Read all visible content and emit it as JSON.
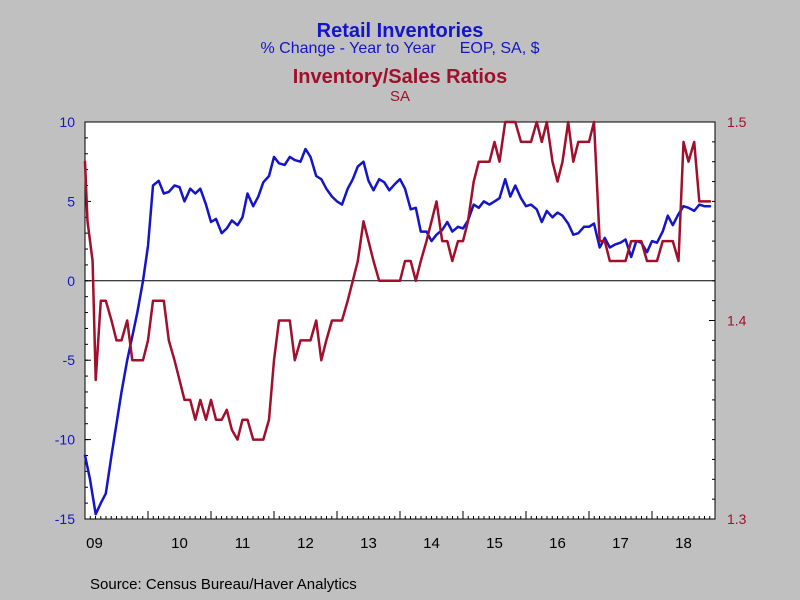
{
  "titles": {
    "line1": "Retail Inventories",
    "line2a": "% Change - Year to Year",
    "line2b": "EOP, SA, $",
    "line3": "Inventory/Sales Ratios",
    "line4": "SA"
  },
  "source": "Source:  Census Bureau/Haver Analytics",
  "colors": {
    "background": "#c0c0c0",
    "plot_background": "#ffffff",
    "inventories": "#1414c8",
    "ratio": "#a0102c",
    "left_axis_text": "#1414c8",
    "right_axis_text": "#a0102c"
  },
  "chart_data": {
    "type": "line",
    "x_range": [
      2009.0,
      2019.0
    ],
    "x_tick_labels": [
      "09",
      "10",
      "11",
      "12",
      "13",
      "14",
      "15",
      "16",
      "17",
      "18"
    ],
    "left_axis": {
      "ylim": [
        -15,
        10
      ],
      "ticks": [
        10,
        5,
        0,
        -5,
        -10,
        -15
      ]
    },
    "right_axis": {
      "ylim": [
        1.3,
        1.5
      ],
      "ticks": [
        1.5,
        1.4,
        1.3
      ]
    },
    "zero_line": 0,
    "grid": false,
    "series": [
      {
        "name": "Retail Inventories",
        "axis": "left",
        "color": "#1414c8",
        "points": [
          [
            2009.0,
            -11.0
          ],
          [
            2009.08,
            -12.5
          ],
          [
            2009.17,
            -14.7
          ],
          [
            2009.25,
            -14.0
          ],
          [
            2009.33,
            -13.4
          ],
          [
            2009.42,
            -11.0
          ],
          [
            2009.5,
            -9.0
          ],
          [
            2009.58,
            -7.0
          ],
          [
            2009.67,
            -5.0
          ],
          [
            2009.75,
            -3.5
          ],
          [
            2009.83,
            -2.0
          ],
          [
            2009.92,
            0.0
          ],
          [
            2010.0,
            2.2
          ],
          [
            2010.08,
            6.0
          ],
          [
            2010.17,
            6.3
          ],
          [
            2010.25,
            5.5
          ],
          [
            2010.33,
            5.6
          ],
          [
            2010.42,
            6.0
          ],
          [
            2010.5,
            5.9
          ],
          [
            2010.58,
            5.0
          ],
          [
            2010.67,
            5.8
          ],
          [
            2010.75,
            5.5
          ],
          [
            2010.83,
            5.8
          ],
          [
            2010.92,
            4.8
          ],
          [
            2011.0,
            3.7
          ],
          [
            2011.08,
            3.9
          ],
          [
            2011.17,
            3.0
          ],
          [
            2011.25,
            3.3
          ],
          [
            2011.33,
            3.8
          ],
          [
            2011.42,
            3.5
          ],
          [
            2011.5,
            4.0
          ],
          [
            2011.58,
            5.5
          ],
          [
            2011.67,
            4.7
          ],
          [
            2011.75,
            5.3
          ],
          [
            2011.83,
            6.2
          ],
          [
            2011.92,
            6.6
          ],
          [
            2012.0,
            7.8
          ],
          [
            2012.08,
            7.4
          ],
          [
            2012.17,
            7.3
          ],
          [
            2012.25,
            7.8
          ],
          [
            2012.33,
            7.6
          ],
          [
            2012.42,
            7.5
          ],
          [
            2012.5,
            8.3
          ],
          [
            2012.58,
            7.8
          ],
          [
            2012.67,
            6.6
          ],
          [
            2012.75,
            6.4
          ],
          [
            2012.83,
            5.8
          ],
          [
            2012.92,
            5.3
          ],
          [
            2013.0,
            5.0
          ],
          [
            2013.08,
            4.8
          ],
          [
            2013.17,
            5.8
          ],
          [
            2013.25,
            6.4
          ],
          [
            2013.33,
            7.2
          ],
          [
            2013.42,
            7.5
          ],
          [
            2013.5,
            6.3
          ],
          [
            2013.58,
            5.7
          ],
          [
            2013.67,
            6.4
          ],
          [
            2013.75,
            6.2
          ],
          [
            2013.83,
            5.7
          ],
          [
            2013.92,
            6.1
          ],
          [
            2014.0,
            6.4
          ],
          [
            2014.08,
            5.8
          ],
          [
            2014.17,
            4.5
          ],
          [
            2014.25,
            4.6
          ],
          [
            2014.33,
            3.1
          ],
          [
            2014.42,
            3.1
          ],
          [
            2014.5,
            2.5
          ],
          [
            2014.58,
            2.9
          ],
          [
            2014.67,
            3.2
          ],
          [
            2014.75,
            3.7
          ],
          [
            2014.83,
            3.1
          ],
          [
            2014.92,
            3.4
          ],
          [
            2015.0,
            3.3
          ],
          [
            2015.08,
            3.8
          ],
          [
            2015.17,
            4.8
          ],
          [
            2015.25,
            4.6
          ],
          [
            2015.33,
            5.0
          ],
          [
            2015.42,
            4.8
          ],
          [
            2015.5,
            5.0
          ],
          [
            2015.58,
            5.2
          ],
          [
            2015.67,
            6.4
          ],
          [
            2015.75,
            5.3
          ],
          [
            2015.83,
            6.0
          ],
          [
            2015.92,
            5.2
          ],
          [
            2016.0,
            4.7
          ],
          [
            2016.08,
            4.8
          ],
          [
            2016.17,
            4.5
          ],
          [
            2016.25,
            3.7
          ],
          [
            2016.33,
            4.4
          ],
          [
            2016.42,
            4.0
          ],
          [
            2016.5,
            4.3
          ],
          [
            2016.58,
            4.1
          ],
          [
            2016.67,
            3.6
          ],
          [
            2016.75,
            2.9
          ],
          [
            2016.83,
            3.0
          ],
          [
            2016.92,
            3.4
          ],
          [
            2017.0,
            3.4
          ],
          [
            2017.08,
            3.6
          ],
          [
            2017.17,
            2.1
          ],
          [
            2017.25,
            2.7
          ],
          [
            2017.33,
            2.1
          ],
          [
            2017.42,
            2.3
          ],
          [
            2017.5,
            2.4
          ],
          [
            2017.58,
            2.6
          ],
          [
            2017.67,
            1.5
          ],
          [
            2017.75,
            2.5
          ],
          [
            2017.83,
            2.4
          ],
          [
            2017.92,
            1.8
          ],
          [
            2018.0,
            2.5
          ],
          [
            2018.08,
            2.4
          ],
          [
            2018.17,
            3.1
          ],
          [
            2018.25,
            4.1
          ],
          [
            2018.33,
            3.5
          ],
          [
            2018.42,
            4.2
          ],
          [
            2018.5,
            4.7
          ],
          [
            2018.58,
            4.6
          ],
          [
            2018.67,
            4.4
          ],
          [
            2018.75,
            4.8
          ],
          [
            2018.83,
            4.7
          ],
          [
            2018.92,
            4.7
          ]
        ]
      },
      {
        "name": "Inventory/Sales Ratios",
        "axis": "right",
        "color": "#a0102c",
        "points": [
          [
            2009.0,
            1.48
          ],
          [
            2009.04,
            1.45
          ],
          [
            2009.12,
            1.43
          ],
          [
            2009.17,
            1.37
          ],
          [
            2009.25,
            1.41
          ],
          [
            2009.33,
            1.41
          ],
          [
            2009.42,
            1.4
          ],
          [
            2009.5,
            1.39
          ],
          [
            2009.58,
            1.39
          ],
          [
            2009.67,
            1.4
          ],
          [
            2009.75,
            1.38
          ],
          [
            2009.83,
            1.38
          ],
          [
            2009.92,
            1.38
          ],
          [
            2010.0,
            1.39
          ],
          [
            2010.08,
            1.41
          ],
          [
            2010.17,
            1.41
          ],
          [
            2010.25,
            1.41
          ],
          [
            2010.33,
            1.39
          ],
          [
            2010.42,
            1.38
          ],
          [
            2010.5,
            1.37
          ],
          [
            2010.58,
            1.36
          ],
          [
            2010.67,
            1.36
          ],
          [
            2010.75,
            1.35
          ],
          [
            2010.83,
            1.36
          ],
          [
            2010.92,
            1.35
          ],
          [
            2011.0,
            1.36
          ],
          [
            2011.08,
            1.35
          ],
          [
            2011.17,
            1.35
          ],
          [
            2011.25,
            1.355
          ],
          [
            2011.33,
            1.345
          ],
          [
            2011.42,
            1.34
          ],
          [
            2011.5,
            1.35
          ],
          [
            2011.58,
            1.35
          ],
          [
            2011.67,
            1.34
          ],
          [
            2011.75,
            1.34
          ],
          [
            2011.83,
            1.34
          ],
          [
            2011.92,
            1.35
          ],
          [
            2012.0,
            1.38
          ],
          [
            2012.08,
            1.4
          ],
          [
            2012.17,
            1.4
          ],
          [
            2012.25,
            1.4
          ],
          [
            2012.33,
            1.38
          ],
          [
            2012.42,
            1.39
          ],
          [
            2012.5,
            1.39
          ],
          [
            2012.58,
            1.39
          ],
          [
            2012.67,
            1.4
          ],
          [
            2012.75,
            1.38
          ],
          [
            2012.83,
            1.39
          ],
          [
            2012.92,
            1.4
          ],
          [
            2013.0,
            1.4
          ],
          [
            2013.08,
            1.4
          ],
          [
            2013.17,
            1.41
          ],
          [
            2013.25,
            1.42
          ],
          [
            2013.33,
            1.43
          ],
          [
            2013.42,
            1.45
          ],
          [
            2013.5,
            1.44
          ],
          [
            2013.58,
            1.43
          ],
          [
            2013.67,
            1.42
          ],
          [
            2013.75,
            1.42
          ],
          [
            2013.83,
            1.42
          ],
          [
            2013.92,
            1.42
          ],
          [
            2014.0,
            1.42
          ],
          [
            2014.08,
            1.43
          ],
          [
            2014.17,
            1.43
          ],
          [
            2014.25,
            1.42
          ],
          [
            2014.33,
            1.43
          ],
          [
            2014.42,
            1.44
          ],
          [
            2014.5,
            1.45
          ],
          [
            2014.58,
            1.46
          ],
          [
            2014.67,
            1.44
          ],
          [
            2014.75,
            1.44
          ],
          [
            2014.83,
            1.43
          ],
          [
            2014.92,
            1.44
          ],
          [
            2015.0,
            1.44
          ],
          [
            2015.08,
            1.45
          ],
          [
            2015.17,
            1.47
          ],
          [
            2015.25,
            1.48
          ],
          [
            2015.33,
            1.48
          ],
          [
            2015.42,
            1.48
          ],
          [
            2015.5,
            1.49
          ],
          [
            2015.58,
            1.48
          ],
          [
            2015.67,
            1.5
          ],
          [
            2015.75,
            1.5
          ],
          [
            2015.83,
            1.5
          ],
          [
            2015.92,
            1.49
          ],
          [
            2016.0,
            1.49
          ],
          [
            2016.08,
            1.49
          ],
          [
            2016.17,
            1.5
          ],
          [
            2016.25,
            1.49
          ],
          [
            2016.33,
            1.5
          ],
          [
            2016.42,
            1.48
          ],
          [
            2016.5,
            1.47
          ],
          [
            2016.58,
            1.48
          ],
          [
            2016.67,
            1.5
          ],
          [
            2016.75,
            1.48
          ],
          [
            2016.83,
            1.49
          ],
          [
            2016.92,
            1.49
          ],
          [
            2017.0,
            1.49
          ],
          [
            2017.08,
            1.5
          ],
          [
            2017.17,
            1.44
          ],
          [
            2017.25,
            1.44
          ],
          [
            2017.33,
            1.43
          ],
          [
            2017.42,
            1.43
          ],
          [
            2017.5,
            1.43
          ],
          [
            2017.58,
            1.43
          ],
          [
            2017.67,
            1.44
          ],
          [
            2017.75,
            1.44
          ],
          [
            2017.83,
            1.44
          ],
          [
            2017.92,
            1.43
          ],
          [
            2018.0,
            1.43
          ],
          [
            2018.08,
            1.43
          ],
          [
            2018.17,
            1.44
          ],
          [
            2018.25,
            1.44
          ],
          [
            2018.33,
            1.44
          ],
          [
            2018.42,
            1.43
          ],
          [
            2018.5,
            1.49
          ],
          [
            2018.58,
            1.48
          ],
          [
            2018.67,
            1.49
          ],
          [
            2018.75,
            1.46
          ],
          [
            2018.83,
            1.46
          ],
          [
            2018.92,
            1.46
          ]
        ]
      }
    ]
  }
}
